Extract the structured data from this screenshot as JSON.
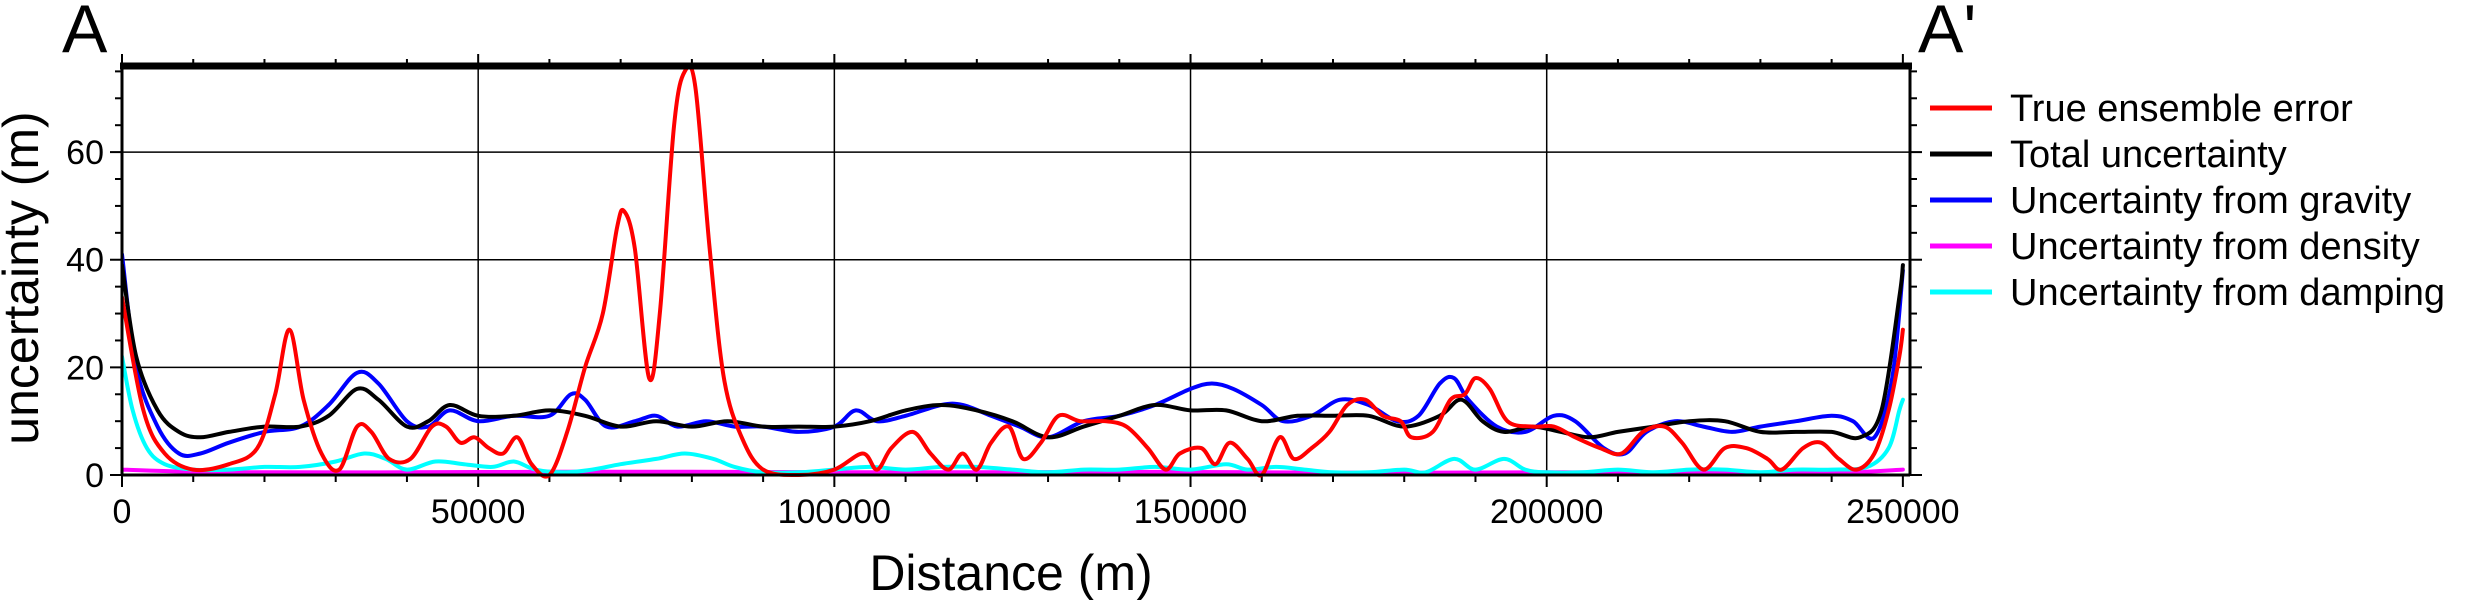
{
  "chart_data": {
    "type": "line",
    "section_start_label": "A",
    "section_end_label": "A'",
    "xlabel": "Distance (m)",
    "ylabel": "uncertainty (m)",
    "xlim": [
      0,
      251000
    ],
    "ylim": [
      0,
      76
    ],
    "xticks": [
      0,
      50000,
      100000,
      150000,
      200000,
      250000
    ],
    "xtick_labels": [
      "0",
      "50000",
      "100000",
      "150000",
      "200000",
      "250000"
    ],
    "yticks": [
      0,
      20,
      40,
      60
    ],
    "ytick_labels": [
      "0",
      "20",
      "40",
      "60"
    ],
    "grid": true,
    "legend_position": "outside-right",
    "series": [
      {
        "name": "True ensemble error",
        "color": "#ff0000",
        "points": [
          [
            0,
            33
          ],
          [
            3000,
            12
          ],
          [
            6000,
            4
          ],
          [
            10000,
            1
          ],
          [
            15000,
            2
          ],
          [
            19000,
            5
          ],
          [
            21500,
            15
          ],
          [
            23500,
            27
          ],
          [
            25500,
            14
          ],
          [
            28000,
            4
          ],
          [
            30500,
            1
          ],
          [
            33000,
            9
          ],
          [
            35000,
            8
          ],
          [
            37500,
            3
          ],
          [
            40500,
            3
          ],
          [
            43500,
            9
          ],
          [
            45500,
            9
          ],
          [
            47500,
            6
          ],
          [
            49500,
            7
          ],
          [
            51500,
            5
          ],
          [
            53500,
            4
          ],
          [
            55500,
            7
          ],
          [
            57500,
            2
          ],
          [
            60000,
            0
          ],
          [
            62500,
            8
          ],
          [
            65000,
            20
          ],
          [
            67500,
            30
          ],
          [
            69500,
            46
          ],
          [
            70500,
            49
          ],
          [
            72000,
            42
          ],
          [
            74000,
            18
          ],
          [
            75500,
            30
          ],
          [
            77500,
            65
          ],
          [
            79000,
            75
          ],
          [
            80500,
            72
          ],
          [
            82500,
            42
          ],
          [
            84500,
            18
          ],
          [
            87000,
            7
          ],
          [
            90000,
            1
          ],
          [
            95000,
            0
          ],
          [
            100000,
            1
          ],
          [
            104000,
            4
          ],
          [
            106000,
            1
          ],
          [
            108000,
            5
          ],
          [
            111000,
            8
          ],
          [
            113500,
            4
          ],
          [
            116000,
            1
          ],
          [
            118000,
            4
          ],
          [
            120000,
            1
          ],
          [
            122000,
            6
          ],
          [
            124500,
            9
          ],
          [
            126500,
            3
          ],
          [
            129000,
            6
          ],
          [
            131500,
            11
          ],
          [
            134500,
            10
          ],
          [
            138000,
            10
          ],
          [
            141000,
            9
          ],
          [
            144000,
            5
          ],
          [
            146500,
            1
          ],
          [
            148500,
            4
          ],
          [
            151500,
            5
          ],
          [
            153500,
            2
          ],
          [
            155500,
            6
          ],
          [
            158000,
            3
          ],
          [
            160000,
            0
          ],
          [
            162500,
            7
          ],
          [
            164500,
            3
          ],
          [
            167000,
            5
          ],
          [
            169500,
            8
          ],
          [
            172000,
            13
          ],
          [
            174500,
            14
          ],
          [
            177000,
            11
          ],
          [
            179500,
            10
          ],
          [
            181000,
            7
          ],
          [
            184000,
            8
          ],
          [
            186500,
            14
          ],
          [
            188500,
            15
          ],
          [
            190000,
            18
          ],
          [
            192000,
            16
          ],
          [
            194500,
            10
          ],
          [
            198000,
            9
          ],
          [
            201000,
            9
          ],
          [
            204000,
            7
          ],
          [
            207500,
            5
          ],
          [
            210500,
            4
          ],
          [
            213500,
            8
          ],
          [
            216500,
            9
          ],
          [
            219000,
            6
          ],
          [
            222000,
            1
          ],
          [
            225000,
            5
          ],
          [
            228000,
            5
          ],
          [
            231000,
            3
          ],
          [
            233000,
            1
          ],
          [
            236000,
            5
          ],
          [
            238500,
            6
          ],
          [
            241000,
            3
          ],
          [
            243500,
            1
          ],
          [
            246000,
            4
          ],
          [
            248000,
            12
          ],
          [
            249500,
            22
          ],
          [
            250000,
            27
          ]
        ]
      },
      {
        "name": "Total uncertainty",
        "color": "#000000",
        "points": [
          [
            0,
            39
          ],
          [
            2000,
            22
          ],
          [
            5000,
            12
          ],
          [
            8000,
            8
          ],
          [
            11000,
            7
          ],
          [
            15000,
            8
          ],
          [
            20000,
            9
          ],
          [
            25000,
            9
          ],
          [
            29000,
            11
          ],
          [
            33000,
            16
          ],
          [
            36000,
            14
          ],
          [
            40000,
            9
          ],
          [
            43000,
            10
          ],
          [
            46000,
            13
          ],
          [
            50000,
            11
          ],
          [
            55000,
            11
          ],
          [
            60000,
            12
          ],
          [
            65000,
            11
          ],
          [
            70000,
            9
          ],
          [
            75000,
            10
          ],
          [
            80000,
            9
          ],
          [
            85000,
            10
          ],
          [
            90000,
            9
          ],
          [
            95000,
            9
          ],
          [
            100000,
            9
          ],
          [
            105000,
            10
          ],
          [
            110000,
            12
          ],
          [
            115000,
            13
          ],
          [
            120000,
            12
          ],
          [
            125000,
            10
          ],
          [
            130000,
            7
          ],
          [
            135000,
            9
          ],
          [
            140000,
            11
          ],
          [
            145000,
            13
          ],
          [
            150000,
            12
          ],
          [
            155000,
            12
          ],
          [
            160000,
            10
          ],
          [
            165000,
            11
          ],
          [
            170000,
            11
          ],
          [
            175000,
            11
          ],
          [
            180000,
            9
          ],
          [
            185000,
            11
          ],
          [
            188000,
            14
          ],
          [
            191000,
            10
          ],
          [
            194000,
            8
          ],
          [
            198000,
            9
          ],
          [
            202000,
            8
          ],
          [
            206000,
            7
          ],
          [
            210000,
            8
          ],
          [
            215000,
            9
          ],
          [
            220000,
            10
          ],
          [
            225000,
            10
          ],
          [
            230000,
            8
          ],
          [
            235000,
            8
          ],
          [
            240000,
            8
          ],
          [
            244000,
            7
          ],
          [
            247000,
            12
          ],
          [
            249500,
            33
          ],
          [
            250000,
            39
          ]
        ]
      },
      {
        "name": "Uncertainty from gravity",
        "color": "#0000ff",
        "points": [
          [
            0,
            41
          ],
          [
            2000,
            20
          ],
          [
            5000,
            9
          ],
          [
            8000,
            4
          ],
          [
            11000,
            4
          ],
          [
            15000,
            6
          ],
          [
            20000,
            8
          ],
          [
            25000,
            9
          ],
          [
            29000,
            13
          ],
          [
            33000,
            19
          ],
          [
            36000,
            17
          ],
          [
            40000,
            10
          ],
          [
            43000,
            9
          ],
          [
            46000,
            12
          ],
          [
            50000,
            10
          ],
          [
            55000,
            11
          ],
          [
            60000,
            11
          ],
          [
            63000,
            15
          ],
          [
            65000,
            14
          ],
          [
            68000,
            9
          ],
          [
            72000,
            10
          ],
          [
            75000,
            11
          ],
          [
            78000,
            9
          ],
          [
            82000,
            10
          ],
          [
            86000,
            9
          ],
          [
            90000,
            9
          ],
          [
            95000,
            8
          ],
          [
            100000,
            9
          ],
          [
            103000,
            12
          ],
          [
            106000,
            10
          ],
          [
            110000,
            11
          ],
          [
            115000,
            13
          ],
          [
            118000,
            13
          ],
          [
            122000,
            11
          ],
          [
            126000,
            9
          ],
          [
            130000,
            7
          ],
          [
            135000,
            10
          ],
          [
            140000,
            11
          ],
          [
            145000,
            13
          ],
          [
            150000,
            16
          ],
          [
            153000,
            17
          ],
          [
            156000,
            16
          ],
          [
            160000,
            13
          ],
          [
            163000,
            10
          ],
          [
            167000,
            11
          ],
          [
            171000,
            14
          ],
          [
            175000,
            13
          ],
          [
            179000,
            10
          ],
          [
            182000,
            11
          ],
          [
            185000,
            17
          ],
          [
            187000,
            18
          ],
          [
            189000,
            14
          ],
          [
            193000,
            9
          ],
          [
            197000,
            8
          ],
          [
            201000,
            11
          ],
          [
            204000,
            10
          ],
          [
            208000,
            5
          ],
          [
            211000,
            4
          ],
          [
            214000,
            8
          ],
          [
            218000,
            10
          ],
          [
            222000,
            9
          ],
          [
            226000,
            8
          ],
          [
            230000,
            9
          ],
          [
            235000,
            10
          ],
          [
            240000,
            11
          ],
          [
            243000,
            10
          ],
          [
            246000,
            7
          ],
          [
            248500,
            18
          ],
          [
            250000,
            38
          ]
        ]
      },
      {
        "name": "Uncertainty from density",
        "color": "#ff00ff",
        "points": [
          [
            0,
            1
          ],
          [
            10000,
            0.6
          ],
          [
            20000,
            0.5
          ],
          [
            40000,
            0.5
          ],
          [
            60000,
            0.6
          ],
          [
            80000,
            0.6
          ],
          [
            100000,
            0.5
          ],
          [
            120000,
            0.5
          ],
          [
            140000,
            0.6
          ],
          [
            160000,
            0.5
          ],
          [
            180000,
            0.4
          ],
          [
            200000,
            0.5
          ],
          [
            220000,
            0.4
          ],
          [
            240000,
            0.4
          ],
          [
            250000,
            1
          ]
        ]
      },
      {
        "name": "Uncertainty from damping",
        "color": "#00ffff",
        "points": [
          [
            0,
            22
          ],
          [
            1500,
            12
          ],
          [
            3500,
            5
          ],
          [
            6000,
            2
          ],
          [
            10000,
            1
          ],
          [
            15000,
            1
          ],
          [
            20000,
            1.5
          ],
          [
            25000,
            1.5
          ],
          [
            30000,
            2.5
          ],
          [
            34000,
            4
          ],
          [
            37000,
            3
          ],
          [
            40000,
            1
          ],
          [
            44000,
            2.5
          ],
          [
            48000,
            2
          ],
          [
            52000,
            1.5
          ],
          [
            55000,
            2.5
          ],
          [
            58000,
            1
          ],
          [
            62000,
            0.5
          ],
          [
            66000,
            1
          ],
          [
            70000,
            2
          ],
          [
            75000,
            3
          ],
          [
            79000,
            4
          ],
          [
            83000,
            3
          ],
          [
            86000,
            1.5
          ],
          [
            90000,
            0.5
          ],
          [
            95000,
            0.5
          ],
          [
            100000,
            1
          ],
          [
            105000,
            1.5
          ],
          [
            110000,
            1
          ],
          [
            115000,
            1.5
          ],
          [
            120000,
            1.5
          ],
          [
            125000,
            1
          ],
          [
            130000,
            0.5
          ],
          [
            135000,
            1
          ],
          [
            140000,
            1
          ],
          [
            145000,
            1.5
          ],
          [
            150000,
            1
          ],
          [
            155000,
            2
          ],
          [
            158000,
            1
          ],
          [
            162000,
            1.5
          ],
          [
            166000,
            1
          ],
          [
            170000,
            0.5
          ],
          [
            175000,
            0.5
          ],
          [
            180000,
            1
          ],
          [
            183000,
            0.5
          ],
          [
            187000,
            3
          ],
          [
            190000,
            1
          ],
          [
            194000,
            3
          ],
          [
            197000,
            1
          ],
          [
            200000,
            0.5
          ],
          [
            205000,
            0.5
          ],
          [
            210000,
            1
          ],
          [
            215000,
            0.5
          ],
          [
            220000,
            1
          ],
          [
            225000,
            1
          ],
          [
            230000,
            0.5
          ],
          [
            235000,
            1
          ],
          [
            240000,
            1
          ],
          [
            245000,
            1.5
          ],
          [
            248000,
            5
          ],
          [
            249500,
            12
          ],
          [
            250000,
            14
          ]
        ]
      }
    ]
  }
}
